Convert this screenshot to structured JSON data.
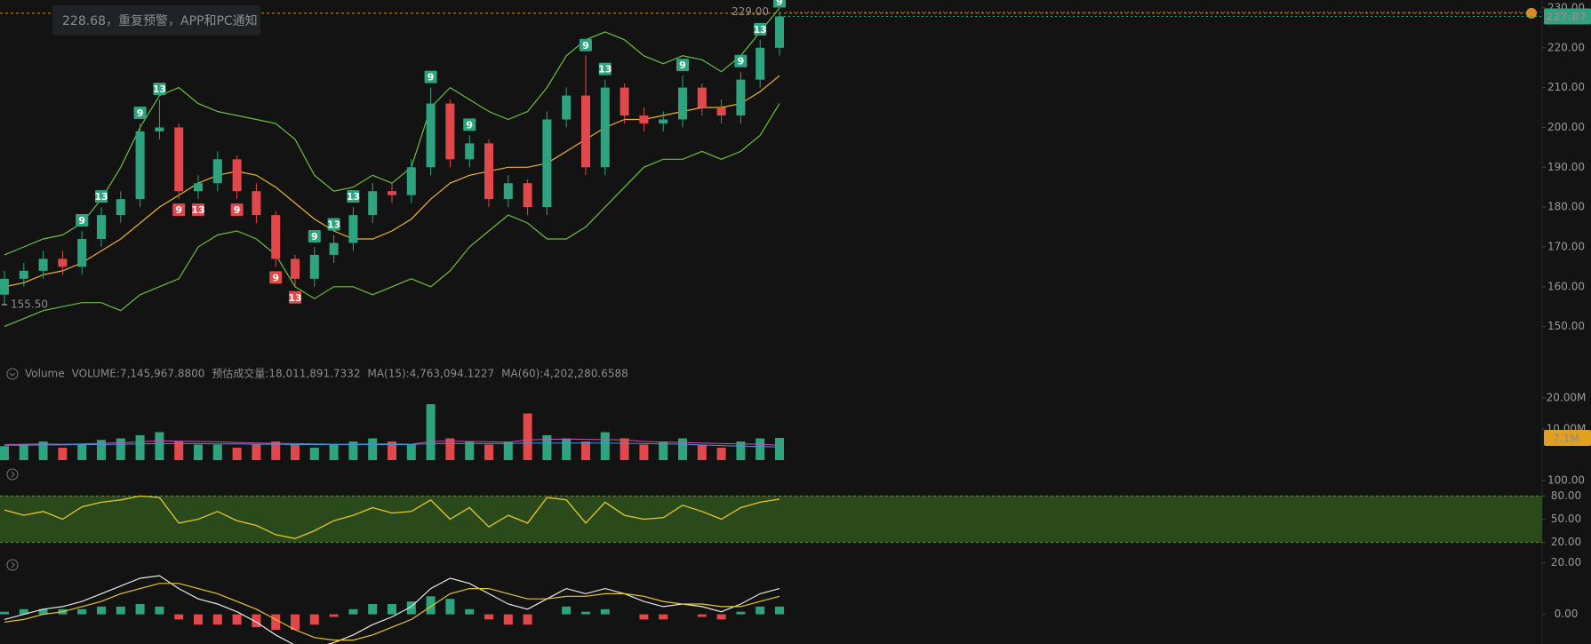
{
  "chart_data": [
    {
      "type": "candlestick",
      "alert": {
        "price": 228.68,
        "text": "228.68，重复预警，APP和PC通知",
        "color": "#d98c1f"
      },
      "last_price": 227.87,
      "high_marker": {
        "value": 229,
        "label": "229.00"
      },
      "low_marker": {
        "value": 155.5,
        "label": "155.50"
      },
      "ylim": [
        143,
        232
      ],
      "yticks": [
        {
          "value": 230,
          "label": "230.00"
        },
        {
          "value": 220,
          "label": "220.00"
        },
        {
          "value": 210,
          "label": "210.00"
        },
        {
          "value": 200,
          "label": "200.00"
        },
        {
          "value": 190,
          "label": "190.00"
        },
        {
          "value": 180,
          "label": "180.00"
        },
        {
          "value": 170,
          "label": "170.00"
        },
        {
          "value": 160,
          "label": "160.00"
        },
        {
          "value": 150,
          "label": "150.00"
        }
      ],
      "up_color": "#2ea37f",
      "down_color": "#e0484b",
      "open": [
        158,
        162,
        164,
        167,
        165,
        172,
        178,
        182,
        199,
        200,
        184,
        186,
        192,
        184,
        178,
        167,
        162,
        168,
        171,
        178,
        184,
        183,
        190,
        206,
        192,
        196,
        182,
        186,
        180,
        202,
        208,
        190,
        210,
        203,
        201,
        202,
        210,
        205,
        203,
        212,
        220
      ],
      "high": [
        164,
        166,
        169,
        169,
        174,
        180,
        184,
        201,
        207,
        201,
        188,
        194,
        193,
        186,
        179,
        168,
        170,
        173,
        180,
        186,
        186,
        192,
        210,
        207,
        198,
        197,
        188,
        187,
        204,
        210,
        218,
        212,
        211,
        205,
        204,
        213,
        211,
        207,
        214,
        222,
        229
      ],
      "low": [
        155.5,
        160,
        162,
        163,
        163,
        170,
        176,
        180,
        197,
        182,
        182,
        184,
        182,
        176,
        165,
        160,
        160,
        166,
        169,
        176,
        181,
        181,
        188,
        190,
        190,
        180,
        180,
        178,
        178,
        200,
        188,
        188,
        201,
        199,
        199,
        200,
        203,
        201,
        201,
        210,
        218
      ],
      "close": [
        162,
        164,
        167,
        165,
        172,
        178,
        182,
        199,
        200,
        184,
        186,
        192,
        184,
        178,
        167,
        162,
        168,
        171,
        178,
        184,
        183,
        190,
        206,
        192,
        196,
        182,
        186,
        180,
        202,
        208,
        190,
        210,
        203,
        201,
        202,
        210,
        205,
        203,
        212,
        220,
        227.87
      ],
      "bands": [
        {
          "color": "#f0b429",
          "values": [
            160,
            161,
            163,
            164,
            166,
            169,
            172,
            176,
            180,
            183,
            186,
            188,
            189,
            188,
            185,
            181,
            177,
            174,
            172,
            172,
            174,
            177,
            182,
            186,
            188,
            189,
            190,
            190,
            191,
            194,
            197,
            200,
            202,
            202,
            203,
            204,
            205,
            205,
            206,
            209,
            213
          ]
        },
        {
          "color": "#6cbf3f",
          "values": [
            168,
            170,
            172,
            173,
            176,
            182,
            190,
            200,
            208,
            210,
            206,
            204,
            203,
            202,
            201,
            197,
            188,
            184,
            185,
            188,
            186,
            190,
            205,
            210,
            207,
            204,
            202,
            204,
            210,
            218,
            222,
            224,
            222,
            218,
            216,
            218,
            217,
            214,
            218,
            224,
            230
          ]
        },
        {
          "color": "#6cbf3f",
          "values": [
            150,
            152,
            154,
            155,
            156,
            156,
            154,
            158,
            160,
            162,
            170,
            173,
            174,
            172,
            168,
            160,
            157,
            160,
            160,
            158,
            160,
            162,
            160,
            164,
            170,
            174,
            178,
            176,
            172,
            172,
            175,
            180,
            185,
            190,
            192,
            192,
            194,
            192,
            194,
            198,
            206
          ]
        }
      ],
      "td_colors": {
        "up": "#2ea37f",
        "down": "#e0484b"
      },
      "td": [
        {
          "at": 4,
          "side": "up",
          "text": "9"
        },
        {
          "at": 5,
          "side": "up",
          "text": "13"
        },
        {
          "at": 7,
          "side": "up",
          "text": "9"
        },
        {
          "at": 8,
          "side": "up",
          "text": "13"
        },
        {
          "at": 9,
          "side": "down",
          "text": "9"
        },
        {
          "at": 10,
          "side": "down",
          "text": "13"
        },
        {
          "at": 12,
          "side": "down",
          "text": "9"
        },
        {
          "at": 14,
          "side": "down",
          "text": "9"
        },
        {
          "at": 15,
          "side": "down",
          "text": "13"
        },
        {
          "at": 16,
          "side": "up",
          "text": "9"
        },
        {
          "at": 17,
          "side": "up",
          "text": "13"
        },
        {
          "at": 18,
          "side": "up",
          "text": "13"
        },
        {
          "at": 22,
          "side": "up",
          "text": "9"
        },
        {
          "at": 24,
          "side": "up",
          "text": "9"
        },
        {
          "at": 30,
          "side": "up",
          "text": "9"
        },
        {
          "at": 31,
          "side": "up",
          "text": "13"
        },
        {
          "at": 35,
          "side": "up",
          "text": "9"
        },
        {
          "at": 38,
          "side": "up",
          "text": "9"
        },
        {
          "at": 39,
          "side": "up",
          "text": "13"
        },
        {
          "at": 40,
          "side": "up",
          "text": "9"
        }
      ]
    },
    {
      "type": "volume",
      "legend": [
        {
          "text": "Volume",
          "color": "#8c8c8c"
        },
        {
          "text": "VOLUME:7,145,967.8800",
          "color": "#8c8c8c"
        },
        {
          "text": "预估成交量:18,011,891.7332",
          "color": "#5e5e5e"
        },
        {
          "text": "MA(15):4,763,094.1227",
          "color": "#d04fb0"
        },
        {
          "text": "MA(60):4,202,280.6588",
          "color": "#3a9ad9"
        }
      ],
      "ylim": [
        0,
        24000000
      ],
      "yticks": [
        {
          "value": 20000000,
          "label": "20.00M"
        },
        {
          "value": 10000000,
          "label": "10.00M"
        }
      ],
      "last": {
        "value": 7145967.88,
        "label": "7.1M",
        "color": "#e0a020"
      },
      "values": [
        4500000,
        5000000,
        6000000,
        4000000,
        5000000,
        6500000,
        7000000,
        8000000,
        9000000,
        6000000,
        5000000,
        5000000,
        4000000,
        5000000,
        6000000,
        5000000,
        4000000,
        5000000,
        6000000,
        7000000,
        6000000,
        5000000,
        18000000,
        7000000,
        6000000,
        5000000,
        6000000,
        15000000,
        8000000,
        7000000,
        6000000,
        9000000,
        7000000,
        5000000,
        6000000,
        7000000,
        5000000,
        4000000,
        6000000,
        7000000,
        7145967.88
      ],
      "lines": [
        {
          "color": "#d04fb0",
          "values": [
            5000000,
            5100000,
            5200000,
            5100000,
            5200000,
            5400000,
            5600000,
            5900000,
            6200000,
            6100000,
            6000000,
            5900000,
            5700000,
            5500000,
            5400000,
            5300000,
            5200000,
            5100000,
            5100000,
            5200000,
            5200000,
            5100000,
            6000000,
            6100000,
            6000000,
            5900000,
            5800000,
            6500000,
            6700000,
            6800000,
            6700000,
            6600000,
            6500000,
            6000000,
            5800000,
            5700000,
            5500000,
            5300000,
            5200000,
            5100000,
            4763094.1227
          ]
        },
        {
          "color": "#3a9ad9",
          "values": [
            4800000,
            4800000,
            4900000,
            4900000,
            5000000,
            5000000,
            5100000,
            5200000,
            5300000,
            5300000,
            5300000,
            5200000,
            5200000,
            5100000,
            5100000,
            5000000,
            5000000,
            5000000,
            5000000,
            5000000,
            5000000,
            5000000,
            5300000,
            5300000,
            5300000,
            5300000,
            5300000,
            5500000,
            5500000,
            5500000,
            5500000,
            5500000,
            5400000,
            5300000,
            5200000,
            5100000,
            4900000,
            4700000,
            4500000,
            4400000,
            4202280.6588
          ]
        }
      ]
    },
    {
      "type": "rsi",
      "ylim": [
        0,
        100
      ],
      "yticks": [
        {
          "value": 100,
          "label": "100.00"
        },
        {
          "value": 80,
          "label": "80.00"
        },
        {
          "value": 50,
          "label": "50.00"
        },
        {
          "value": 20,
          "label": "20.00"
        }
      ],
      "band": [
        20,
        80
      ],
      "band_color": "#2b4a1b",
      "color": "#e6c72a",
      "values": [
        62,
        55,
        60,
        50,
        66,
        72,
        75,
        80,
        78,
        45,
        50,
        60,
        48,
        42,
        30,
        25,
        35,
        48,
        55,
        65,
        58,
        60,
        75,
        50,
        65,
        40,
        55,
        45,
        78,
        75,
        45,
        72,
        55,
        50,
        52,
        68,
        60,
        50,
        65,
        72,
        76
      ]
    },
    {
      "type": "macd",
      "ylim": [
        -11,
        24
      ],
      "yticks": [
        {
          "value": 20,
          "label": "20.00"
        },
        {
          "value": 0,
          "label": "0.00"
        }
      ],
      "dif": {
        "color": "#e8e8e8",
        "values": [
          -2,
          0,
          2,
          3,
          5,
          8,
          11,
          14,
          15,
          10,
          6,
          4,
          1,
          -3,
          -8,
          -12,
          -13,
          -11,
          -8,
          -4,
          -1,
          3,
          10,
          14,
          12,
          8,
          4,
          2,
          6,
          10,
          8,
          10,
          8,
          5,
          3,
          4,
          3,
          1,
          4,
          8,
          10
        ]
      },
      "dea": {
        "color": "#e6c72a",
        "values": [
          -3,
          -2,
          0,
          1,
          3,
          5,
          8,
          10,
          12,
          12,
          10,
          8,
          5,
          2,
          -2,
          -6,
          -9,
          -10,
          -10,
          -8,
          -5,
          -2,
          3,
          8,
          10,
          10,
          8,
          6,
          6,
          7,
          7,
          8,
          8,
          7,
          5,
          4,
          4,
          3,
          3,
          5,
          7
        ]
      },
      "hist": [
        1,
        2,
        2,
        2,
        2,
        3,
        3,
        4,
        3,
        -2,
        -4,
        -4,
        -4,
        -5,
        -6,
        -6,
        -4,
        -1,
        2,
        4,
        4,
        5,
        7,
        6,
        2,
        -2,
        -4,
        -4,
        0,
        3,
        1,
        2,
        0,
        -2,
        -2,
        0,
        -1,
        -2,
        1,
        3,
        3
      ]
    }
  ]
}
